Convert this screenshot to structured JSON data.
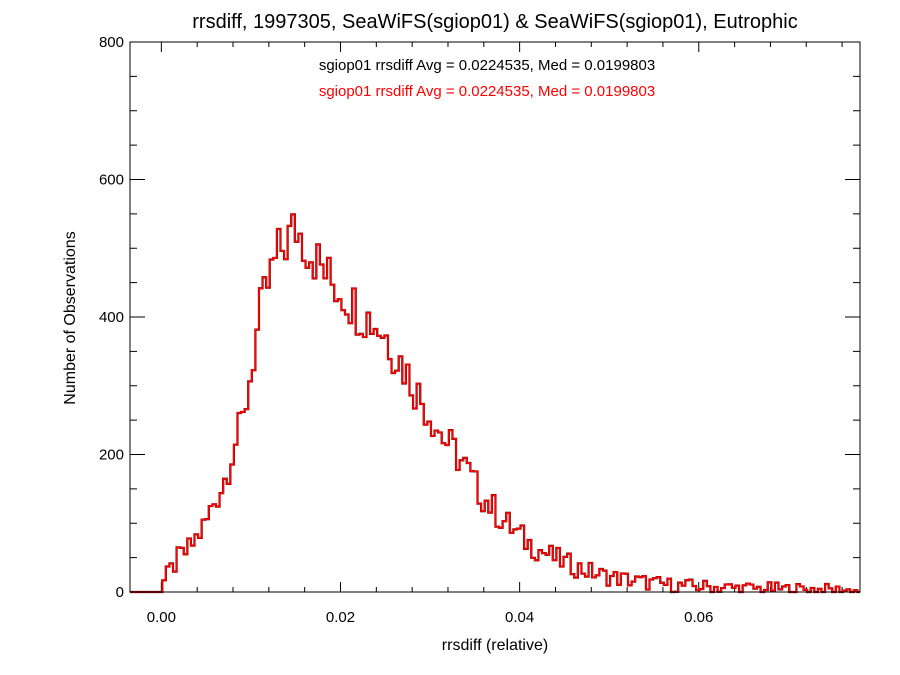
{
  "chart_data": {
    "type": "histogram",
    "title": "rrsdiff, 1997305, SeaWiFS(sgiop01) & SeaWiFS(sgiop01), Eutrophic",
    "xlabel": "rrsdiff (relative)",
    "ylabel": "Number of Observations",
    "xlim": [
      -0.0035,
      0.078
    ],
    "ylim": [
      0,
      800
    ],
    "x_ticks": [
      0.0,
      0.02,
      0.04,
      0.06
    ],
    "x_tick_labels": [
      "0.00",
      "0.02",
      "0.04",
      "0.06"
    ],
    "y_ticks": [
      0,
      200,
      400,
      600,
      800
    ],
    "y_tick_labels": [
      "0",
      "200",
      "400",
      "600",
      "800"
    ],
    "grid": false,
    "annotations": [
      {
        "text": "sgiop01 rrsdiff Avg = 0.0224535, Med = 0.0199803",
        "color": "#000000"
      },
      {
        "text": "sgiop01 rrsdiff Avg = 0.0224535, Med = 0.0199803",
        "color": "#ff0000"
      }
    ],
    "bin_width": 0.0004,
    "series": [
      {
        "color": "#000000"
      },
      {
        "color": "#ff0000",
        "points": [
          [
            -0.0035,
            0
          ],
          [
            0.0,
            10
          ],
          [
            0.001,
            30
          ],
          [
            0.002,
            50
          ],
          [
            0.003,
            60
          ],
          [
            0.004,
            80
          ],
          [
            0.005,
            100
          ],
          [
            0.006,
            135
          ],
          [
            0.007,
            160
          ],
          [
            0.008,
            210
          ],
          [
            0.009,
            240
          ],
          [
            0.01,
            320
          ],
          [
            0.011,
            400
          ],
          [
            0.012,
            450
          ],
          [
            0.013,
            490
          ],
          [
            0.014,
            510
          ],
          [
            0.015,
            530
          ],
          [
            0.016,
            510
          ],
          [
            0.017,
            490
          ],
          [
            0.018,
            470
          ],
          [
            0.019,
            450
          ],
          [
            0.02,
            440
          ],
          [
            0.021,
            425
          ],
          [
            0.022,
            410
          ],
          [
            0.023,
            400
          ],
          [
            0.024,
            390
          ],
          [
            0.025,
            375
          ],
          [
            0.026,
            350
          ],
          [
            0.027,
            330
          ],
          [
            0.028,
            305
          ],
          [
            0.029,
            280
          ],
          [
            0.03,
            260
          ],
          [
            0.031,
            235
          ],
          [
            0.032,
            215
          ],
          [
            0.033,
            200
          ],
          [
            0.034,
            180
          ],
          [
            0.035,
            155
          ],
          [
            0.036,
            138
          ],
          [
            0.037,
            122
          ],
          [
            0.038,
            107
          ],
          [
            0.039,
            94
          ],
          [
            0.04,
            82
          ],
          [
            0.041,
            71
          ],
          [
            0.042,
            63
          ],
          [
            0.043,
            56
          ],
          [
            0.044,
            49
          ],
          [
            0.045,
            43
          ],
          [
            0.046,
            38
          ],
          [
            0.047,
            33
          ],
          [
            0.048,
            29
          ],
          [
            0.049,
            25
          ],
          [
            0.05,
            22
          ],
          [
            0.052,
            18
          ],
          [
            0.054,
            14
          ],
          [
            0.056,
            11
          ],
          [
            0.058,
            9
          ],
          [
            0.06,
            8
          ],
          [
            0.062,
            7
          ],
          [
            0.064,
            6
          ],
          [
            0.066,
            5
          ],
          [
            0.068,
            5
          ],
          [
            0.07,
            4
          ],
          [
            0.072,
            4
          ],
          [
            0.075,
            3
          ],
          [
            0.078,
            2
          ]
        ]
      }
    ]
  }
}
